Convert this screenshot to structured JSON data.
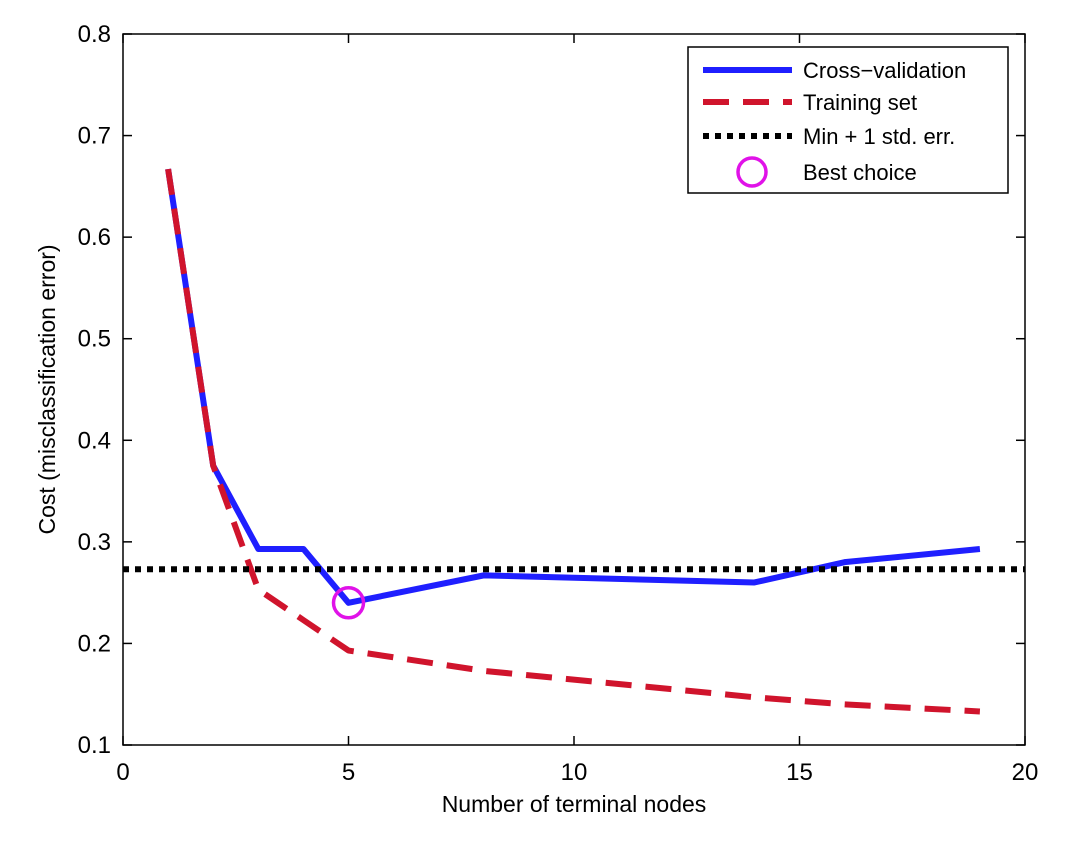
{
  "chart_data": {
    "type": "line",
    "title": "",
    "xlabel": "Number of terminal nodes",
    "ylabel": "Cost (misclassification error)",
    "xlim": [
      0,
      20
    ],
    "ylim": [
      0.1,
      0.8
    ],
    "xticks": [
      0,
      5,
      10,
      15,
      20
    ],
    "yticks": [
      0.1,
      0.2,
      0.3,
      0.4,
      0.5,
      0.6,
      0.7,
      0.8
    ],
    "xtick_labels": [
      "0",
      "5",
      "10",
      "15",
      "20"
    ],
    "ytick_labels": [
      "0.1",
      "0.2",
      "0.3",
      "0.4",
      "0.5",
      "0.6",
      "0.7",
      "0.8"
    ],
    "grid": false,
    "legend_position": "top-right",
    "series": [
      {
        "name": "Cross−validation",
        "style": "solid",
        "color": "#1f1fff",
        "x": [
          1,
          2,
          3,
          4,
          5,
          8,
          14,
          16,
          19
        ],
        "y": [
          0.667,
          0.375,
          0.293,
          0.293,
          0.24,
          0.267,
          0.26,
          0.28,
          0.293
        ]
      },
      {
        "name": "Training set",
        "style": "dashed",
        "color": "#d0142c",
        "x": [
          1,
          2,
          3,
          4,
          5,
          8,
          14,
          16,
          19
        ],
        "y": [
          0.667,
          0.375,
          0.253,
          0.223,
          0.193,
          0.173,
          0.147,
          0.14,
          0.133
        ]
      },
      {
        "name": "Min + 1 std. err.",
        "style": "dotted",
        "color": "#000000",
        "x": [
          0,
          20
        ],
        "y": [
          0.273,
          0.273
        ]
      },
      {
        "name": "Best choice",
        "style": "marker-circle",
        "color": "#e012e8",
        "x": [
          5
        ],
        "y": [
          0.24
        ]
      }
    ]
  }
}
